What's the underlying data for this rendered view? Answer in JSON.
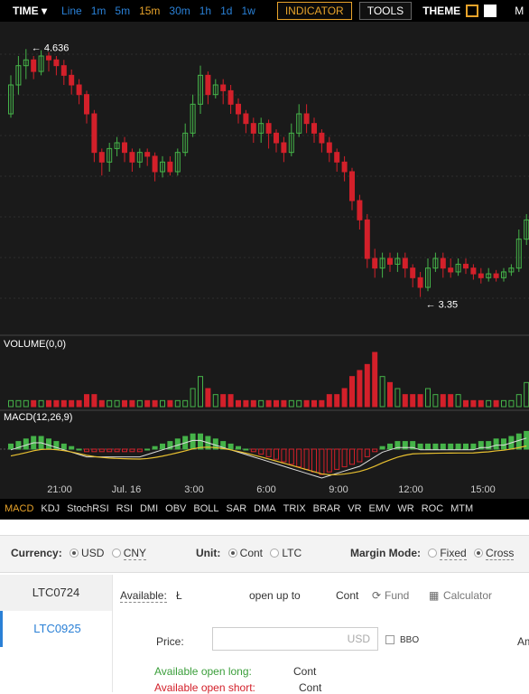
{
  "toolbar": {
    "time_label": "TIME ▾",
    "intervals": [
      "Line",
      "1m",
      "5m",
      "15m",
      "30m",
      "1h",
      "1d",
      "1w"
    ],
    "active_interval": "15m",
    "indicator_label": "INDICATOR",
    "tools_label": "TOOLS",
    "theme_label": "THEME",
    "extra_label": "M"
  },
  "colors": {
    "up": "#45b349",
    "down": "#d3202a",
    "accent": "#e8a32a",
    "link": "#2a80d6",
    "panel_bg": "#1a1a1a"
  },
  "chart_data": {
    "type": "candlestick",
    "price_labels": {
      "high": "4.636",
      "low": "3.35"
    },
    "x_ticks": [
      "21:00",
      "Jul. 16",
      "3:00",
      "6:00",
      "9:00",
      "12:00",
      "15:00"
    ],
    "candles": [
      [
        4.3,
        4.45,
        4.28,
        4.5
      ],
      [
        4.45,
        4.55,
        4.4,
        4.6
      ],
      [
        4.55,
        4.58,
        4.48,
        4.636
      ],
      [
        4.58,
        4.52,
        4.48,
        4.6
      ],
      [
        4.52,
        4.6,
        4.5,
        4.63
      ],
      [
        4.6,
        4.58,
        4.52,
        4.62
      ],
      [
        4.58,
        4.55,
        4.5,
        4.6
      ],
      [
        4.55,
        4.5,
        4.45,
        4.58
      ],
      [
        4.5,
        4.45,
        4.4,
        4.53
      ],
      [
        4.45,
        4.4,
        4.35,
        4.48
      ],
      [
        4.4,
        4.3,
        4.25,
        4.42
      ],
      [
        4.3,
        4.1,
        4.05,
        4.32
      ],
      [
        4.1,
        4.05,
        3.98,
        4.12
      ],
      [
        4.05,
        4.12,
        4.0,
        4.15
      ],
      [
        4.12,
        4.15,
        4.08,
        4.18
      ],
      [
        4.15,
        4.1,
        4.05,
        4.18
      ],
      [
        4.1,
        4.05,
        4.0,
        4.12
      ],
      [
        4.05,
        4.1,
        4.02,
        4.12
      ],
      [
        4.1,
        4.08,
        4.03,
        4.12
      ],
      [
        4.08,
        4.0,
        3.95,
        4.1
      ],
      [
        4.0,
        4.05,
        3.97,
        4.08
      ],
      [
        4.05,
        4.0,
        3.98,
        4.08
      ],
      [
        4.0,
        4.1,
        3.98,
        4.12
      ],
      [
        4.1,
        4.2,
        4.08,
        4.25
      ],
      [
        4.2,
        4.35,
        4.18,
        4.4
      ],
      [
        4.35,
        4.5,
        4.3,
        4.55
      ],
      [
        4.5,
        4.4,
        4.35,
        4.52
      ],
      [
        4.4,
        4.45,
        4.38,
        4.48
      ],
      [
        4.45,
        4.42,
        4.35,
        4.48
      ],
      [
        4.42,
        4.35,
        4.3,
        4.45
      ],
      [
        4.35,
        4.3,
        4.25,
        4.38
      ],
      [
        4.3,
        4.25,
        4.2,
        4.32
      ],
      [
        4.25,
        4.2,
        4.15,
        4.28
      ],
      [
        4.2,
        4.25,
        4.15,
        4.28
      ],
      [
        4.25,
        4.2,
        4.12,
        4.27
      ],
      [
        4.2,
        4.15,
        4.1,
        4.22
      ],
      [
        4.15,
        4.1,
        4.05,
        4.18
      ],
      [
        4.1,
        4.2,
        4.08,
        4.25
      ],
      [
        4.2,
        4.3,
        4.18,
        4.35
      ],
      [
        4.3,
        4.25,
        4.2,
        4.35
      ],
      [
        4.25,
        4.2,
        4.15,
        4.28
      ],
      [
        4.2,
        4.15,
        4.1,
        4.22
      ],
      [
        4.15,
        4.1,
        4.05,
        4.18
      ],
      [
        4.1,
        4.05,
        4.0,
        4.12
      ],
      [
        4.05,
        4.0,
        3.95,
        4.08
      ],
      [
        4.0,
        3.85,
        3.8,
        4.02
      ],
      [
        3.85,
        3.75,
        3.7,
        3.88
      ],
      [
        3.75,
        3.55,
        3.5,
        3.78
      ],
      [
        3.55,
        3.5,
        3.45,
        3.6
      ],
      [
        3.5,
        3.55,
        3.45,
        3.58
      ],
      [
        3.55,
        3.52,
        3.48,
        3.58
      ],
      [
        3.52,
        3.55,
        3.48,
        3.58
      ],
      [
        3.55,
        3.5,
        3.45,
        3.58
      ],
      [
        3.5,
        3.45,
        3.4,
        3.52
      ],
      [
        3.45,
        3.4,
        3.35,
        3.48
      ],
      [
        3.4,
        3.5,
        3.38,
        3.55
      ],
      [
        3.5,
        3.55,
        3.48,
        3.58
      ],
      [
        3.55,
        3.5,
        3.45,
        3.58
      ],
      [
        3.5,
        3.48,
        3.45,
        3.55
      ],
      [
        3.48,
        3.52,
        3.46,
        3.55
      ],
      [
        3.52,
        3.5,
        3.47,
        3.55
      ],
      [
        3.5,
        3.47,
        3.44,
        3.52
      ],
      [
        3.47,
        3.45,
        3.42,
        3.5
      ],
      [
        3.45,
        3.47,
        3.43,
        3.5
      ],
      [
        3.47,
        3.45,
        3.43,
        3.49
      ],
      [
        3.45,
        3.48,
        3.43,
        3.5
      ],
      [
        3.48,
        3.5,
        3.46,
        3.52
      ],
      [
        3.5,
        3.65,
        3.48,
        3.7
      ],
      [
        3.65,
        3.75,
        3.62,
        3.78
      ]
    ],
    "volume_label": "VOLUME(0,0)",
    "volume": [
      1,
      1,
      1,
      1,
      1,
      1,
      1,
      1,
      1,
      1,
      2,
      2,
      1,
      1,
      1,
      1,
      1,
      1,
      1,
      1,
      1,
      1,
      1,
      1,
      3,
      5,
      3,
      2,
      2,
      2,
      1,
      1,
      1,
      1,
      1,
      1,
      1,
      1,
      1,
      1,
      1,
      1,
      2,
      2,
      3,
      5,
      6,
      7,
      9,
      5,
      4,
      3,
      2,
      2,
      2,
      3,
      2,
      2,
      2,
      2,
      1,
      1,
      1,
      1,
      1,
      1,
      1,
      2,
      4
    ],
    "macd_label": "MACD(12,26,9)",
    "macd_hist": [
      0.02,
      0.03,
      0.04,
      0.05,
      0.05,
      0.04,
      0.03,
      0.02,
      0.01,
      0,
      -0.01,
      -0.01,
      -0.01,
      -0.01,
      -0.01,
      -0.01,
      -0.01,
      -0.01,
      0,
      0.01,
      0.02,
      0.03,
      0.04,
      0.05,
      0.06,
      0.06,
      0.05,
      0.04,
      0.03,
      0.02,
      0.01,
      0,
      -0.01,
      -0.02,
      -0.03,
      -0.04,
      -0.05,
      -0.06,
      -0.07,
      -0.08,
      -0.09,
      -0.1,
      -0.09,
      -0.08,
      -0.07,
      -0.06,
      -0.05,
      -0.03,
      -0.01,
      0.01,
      0.02,
      0.03,
      0.03,
      0.03,
      0.02,
      0.02,
      0.02,
      0.02,
      0.02,
      0.02,
      0.02,
      0.02,
      0.03,
      0.03,
      0.04,
      0.04,
      0.05,
      0.06,
      0.07
    ]
  },
  "indicators": [
    "MACD",
    "KDJ",
    "StochRSI",
    "RSI",
    "DMI",
    "OBV",
    "BOLL",
    "SAR",
    "DMA",
    "TRIX",
    "BRAR",
    "VR",
    "EMV",
    "WR",
    "ROC",
    "MTM"
  ],
  "active_indicator": "MACD",
  "options": {
    "currency_label": "Currency:",
    "currency_opts": [
      "USD",
      "CNY"
    ],
    "unit_label": "Unit:",
    "unit_opts": [
      "Cont",
      "LTC"
    ],
    "margin_label": "Margin Mode:",
    "margin_opts": [
      "Fixed",
      "Cross"
    ]
  },
  "contracts": [
    "LTC0724",
    "LTC0925"
  ],
  "form": {
    "available_label": "Available:",
    "available_symbol": "Ł",
    "open_up_to": "open up to",
    "cont": "Cont",
    "fund": "Fund",
    "calculator": "Calculator",
    "price_label": "Price:",
    "price_unit": "USD",
    "bbo": "BBO",
    "am_label": "Am",
    "avail_long": "Available open long:",
    "avail_long_unit": "Cont",
    "avail_short": "Available open short:",
    "avail_short_unit": "Cont"
  }
}
